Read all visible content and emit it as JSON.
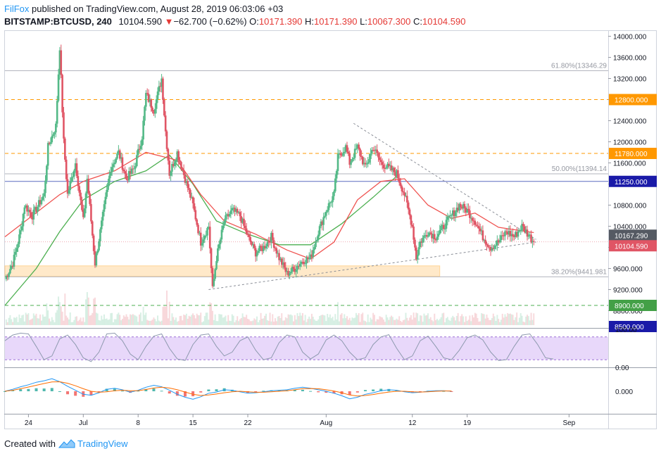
{
  "header": {
    "brand": "FilFox",
    "published": "published on TradingView.com, August 28, 2019 06:03:06 +03",
    "symbol": "BITSTAMP:BTCUSD, 240",
    "last": "10104.590",
    "change_arrow": "▼",
    "change": "−62.700 (−0.62%)",
    "open_label": "O:",
    "open": "10171.390",
    "high_label": "H:",
    "high": "10171.390",
    "low_label": "L:",
    "low": "10067.300",
    "close_label": "C:",
    "close": "10104.590"
  },
  "footer": {
    "created": "Created with",
    "logo_text": "TradingView"
  },
  "colors": {
    "up": "#26a69a",
    "up_candle": "#53b987",
    "down": "#e05565",
    "ma_fast": "#ef5350",
    "ma_slow": "#4caf50",
    "orange": "#ff9800",
    "blue_level": "#1a3fd6",
    "green_level": "#4caf50",
    "rsi_band": "#d6b8f5",
    "macd_line": "#2196f3",
    "signal_line": "#ff6d00"
  },
  "chart_data": [
    {
      "type": "candlestick",
      "title": "BITSTAMP:BTCUSD, 240",
      "ylim": [
        8500,
        14100
      ],
      "y_ticks": [
        "14000.000",
        "13600.000",
        "13200.000",
        "12800.000",
        "12400.000",
        "12000.000",
        "11600.000",
        "11200.000",
        "10800.000",
        "10400.000",
        "10000.000",
        "9600.000",
        "9200.000",
        "8800.000",
        "8500.000"
      ],
      "x_ticks": [
        "24",
        "Jul",
        "8",
        "15",
        "22",
        "Aug",
        "12",
        "19",
        "Sep"
      ],
      "x_tick_days": [
        -7,
        0,
        7,
        14,
        21,
        31,
        42,
        49,
        62
      ],
      "x_range_days": [
        -10,
        67
      ],
      "last_day": 57.5,
      "ma_fast_label": "10167.290",
      "price_label": "10104.590",
      "levels": [
        {
          "name": "fib-618",
          "value": 13346.29,
          "label": "61.80%(13346.29",
          "style": "fib"
        },
        {
          "name": "fib-500",
          "value": 11394.14,
          "label": "50.00%(11394.14",
          "style": "fib"
        },
        {
          "name": "fib-382",
          "value": 9441.98,
          "label": "38.20%(9441.981",
          "style": "fib"
        },
        {
          "name": "res-12800",
          "value": 12800,
          "label": "12800.000",
          "style": "orange"
        },
        {
          "name": "res-11780",
          "value": 11780,
          "label": "11780.000",
          "style": "orange"
        },
        {
          "name": "lvl-11250",
          "value": 11250,
          "label": "11250.000",
          "style": "blue"
        },
        {
          "name": "sup-8900",
          "value": 8900,
          "label": "8900.000",
          "style": "green"
        },
        {
          "name": "lvl-8500",
          "value": 8500,
          "label": "8500.000",
          "style": "blue"
        }
      ],
      "support_zone": [
        9450,
        9650
      ],
      "anchors": [
        [
          -10,
          9400
        ],
        [
          -9,
          9700
        ],
        [
          -8,
          10300
        ],
        [
          -7.5,
          10800
        ],
        [
          -6.5,
          10600
        ],
        [
          -5,
          11000
        ],
        [
          -4.5,
          11900
        ],
        [
          -3.5,
          12300
        ],
        [
          -3,
          13800
        ],
        [
          -2.5,
          12000
        ],
        [
          -2,
          11000
        ],
        [
          -1,
          11600
        ],
        [
          0,
          10500
        ],
        [
          0.5,
          11300
        ],
        [
          1.5,
          9700
        ],
        [
          2.5,
          10600
        ],
        [
          3.5,
          11500
        ],
        [
          4.5,
          11800
        ],
        [
          5.5,
          11300
        ],
        [
          6.5,
          11500
        ],
        [
          7.5,
          12100
        ],
        [
          8,
          12900
        ],
        [
          9,
          12600
        ],
        [
          10,
          13200
        ],
        [
          10.5,
          12200
        ],
        [
          11,
          11400
        ],
        [
          12,
          11800
        ],
        [
          13,
          11300
        ],
        [
          14,
          10800
        ],
        [
          15,
          10100
        ],
        [
          16,
          10400
        ],
        [
          16.5,
          9200
        ],
        [
          17,
          9800
        ],
        [
          18,
          10500
        ],
        [
          19,
          10700
        ],
        [
          20,
          10600
        ],
        [
          21,
          10200
        ],
        [
          22,
          9900
        ],
        [
          23,
          10000
        ],
        [
          24,
          10200
        ],
        [
          25,
          9800
        ],
        [
          26,
          9500
        ],
        [
          27,
          9600
        ],
        [
          28,
          9750
        ],
        [
          29,
          9800
        ],
        [
          30,
          10300
        ],
        [
          31,
          10700
        ],
        [
          32,
          11000
        ],
        [
          32.5,
          11700
        ],
        [
          33.5,
          11900
        ],
        [
          34,
          11600
        ],
        [
          35,
          11900
        ],
        [
          36,
          11500
        ],
        [
          37,
          11900
        ],
        [
          38,
          11600
        ],
        [
          39,
          11500
        ],
        [
          40,
          11400
        ],
        [
          41,
          11000
        ],
        [
          42,
          10400
        ],
        [
          42.5,
          9800
        ],
        [
          43,
          10100
        ],
        [
          44,
          10300
        ],
        [
          45,
          10200
        ],
        [
          46,
          10400
        ],
        [
          47,
          10600
        ],
        [
          48,
          10800
        ],
        [
          49,
          10700
        ],
        [
          50,
          10500
        ],
        [
          51,
          10200
        ],
        [
          52,
          10000
        ],
        [
          53,
          10100
        ],
        [
          54,
          10300
        ],
        [
          55,
          10200
        ],
        [
          56,
          10400
        ],
        [
          57,
          10200
        ],
        [
          57.5,
          10105
        ]
      ],
      "ma_fast": [
        [
          -10,
          10200
        ],
        [
          -3,
          11000
        ],
        [
          0,
          11250
        ],
        [
          4,
          11450
        ],
        [
          8,
          11800
        ],
        [
          12,
          11650
        ],
        [
          15,
          11000
        ],
        [
          18,
          10500
        ],
        [
          22,
          10250
        ],
        [
          26,
          9950
        ],
        [
          29,
          9780
        ],
        [
          32,
          10100
        ],
        [
          35,
          10900
        ],
        [
          38,
          11250
        ],
        [
          41,
          11300
        ],
        [
          44,
          10800
        ],
        [
          47,
          10550
        ],
        [
          50,
          10650
        ],
        [
          53,
          10380
        ],
        [
          57.5,
          10280
        ]
      ],
      "ma_slow": [
        [
          -10,
          8900
        ],
        [
          -6,
          9600
        ],
        [
          -3,
          10300
        ],
        [
          0,
          10900
        ],
        [
          4,
          11250
        ],
        [
          8,
          11450
        ],
        [
          11,
          11750
        ],
        [
          14,
          11200
        ],
        [
          17,
          10500
        ],
        [
          21,
          10250
        ],
        [
          25,
          10050
        ],
        [
          29,
          10050
        ],
        [
          33,
          10450
        ],
        [
          37,
          10950
        ],
        [
          40,
          11350
        ]
      ],
      "trendlines": [
        {
          "name": "upper-trendline",
          "from": [
            34.5,
            12350
          ],
          "to": [
            57.8,
            10150
          ]
        },
        {
          "name": "lower-trendline",
          "from": [
            16,
            9200
          ],
          "to": [
            57.8,
            10100
          ]
        }
      ]
    },
    {
      "type": "line",
      "title": "RSI",
      "ylim": [
        0,
        100
      ],
      "y_ticks": [
        "100.00",
        "0.00"
      ],
      "band": [
        20,
        80
      ],
      "values_step": 1,
      "values": [
        70,
        85,
        90,
        88,
        55,
        20,
        30,
        75,
        85,
        60,
        25,
        15,
        40,
        88,
        90,
        70,
        35,
        20,
        55,
        82,
        88,
        50,
        22,
        18,
        60,
        85,
        88,
        55,
        30,
        40,
        70,
        80,
        45,
        20,
        25,
        65,
        85,
        80,
        40,
        22,
        35,
        72,
        85,
        70,
        40,
        20,
        25,
        60,
        80,
        86,
        50,
        20,
        30,
        70,
        82,
        55,
        25,
        20,
        45,
        78,
        85,
        72,
        40,
        18,
        20,
        55,
        85,
        88,
        60,
        25,
        22
      ]
    },
    {
      "type": "line",
      "title": "MACD",
      "ylim": [
        -900,
        900
      ],
      "y_ticks": [
        "0.000"
      ],
      "x_start": -10,
      "values_step": 1,
      "macd": [
        0,
        80,
        180,
        260,
        360,
        420,
        500,
        380,
        200,
        40,
        -120,
        -160,
        -60,
        80,
        120,
        60,
        -40,
        40,
        160,
        240,
        180,
        40,
        -120,
        -240,
        -320,
        -220,
        -80,
        -30,
        60,
        40,
        -20,
        -80,
        -60,
        -20,
        20,
        40,
        60,
        120,
        160,
        120,
        60,
        0,
        -80,
        -180,
        -300,
        -240,
        -120,
        -60,
        20,
        60,
        40,
        -20,
        -60,
        -40,
        0,
        20,
        20,
        0
      ],
      "signal": [
        0,
        40,
        100,
        170,
        240,
        310,
        370,
        380,
        320,
        220,
        100,
        0,
        -40,
        -20,
        20,
        40,
        20,
        20,
        70,
        130,
        160,
        130,
        60,
        -30,
        -120,
        -170,
        -150,
        -110,
        -60,
        -20,
        0,
        -20,
        -40,
        -40,
        -20,
        0,
        20,
        60,
        100,
        110,
        100,
        60,
        10,
        -60,
        -150,
        -190,
        -170,
        -130,
        -80,
        -30,
        0,
        0,
        -20,
        -30,
        -20,
        0,
        10,
        10
      ]
    }
  ]
}
